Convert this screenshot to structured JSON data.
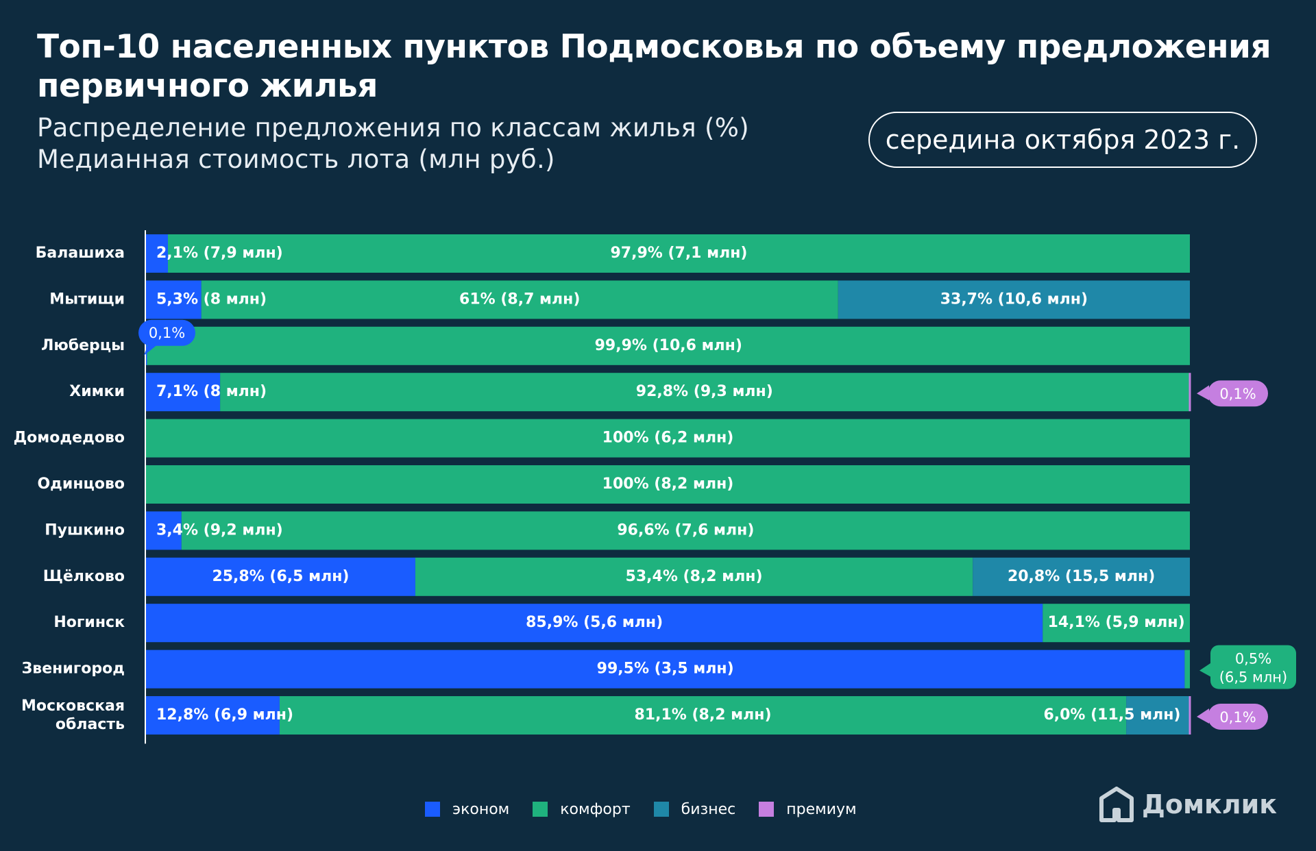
{
  "title": "Топ-10 населенных пунктов Подмосковья по объему предложения первичного жилья",
  "subtitle_line1": "Распределение предложения по классам жилья (%)",
  "subtitle_line2": "Медианная стоимость лота (млн руб.)",
  "date_label": "середина октября 2023 г.",
  "brand": "Домклик",
  "colors": {
    "background": "#0e2b3f",
    "economy": "#1a5cff",
    "comfort": "#1fb27e",
    "business": "#1f88a8",
    "premium": "#c57fe0"
  },
  "legend": [
    {
      "key": "economy",
      "label": "эконом"
    },
    {
      "key": "comfort",
      "label": "комфорт"
    },
    {
      "key": "business",
      "label": "бизнес"
    },
    {
      "key": "premium",
      "label": "премиум"
    }
  ],
  "chart_data": {
    "type": "bar",
    "orientation": "horizontal",
    "stacked": true,
    "xlim": [
      0,
      100
    ],
    "grid": false,
    "legend_position": "bottom",
    "categories": [
      "Балашиха",
      "Мытищи",
      "Люберцы",
      "Химки",
      "Домодедово",
      "Одинцово",
      "Пушкино",
      "Щёлково",
      "Ногинск",
      "Звенигород",
      "Московская область"
    ],
    "series": [
      {
        "name": "эконом",
        "color_key": "economy",
        "values": [
          2.1,
          5.3,
          0.1,
          7.1,
          0,
          0,
          3.4,
          25.8,
          85.9,
          99.5,
          12.8
        ]
      },
      {
        "name": "комфорт",
        "color_key": "comfort",
        "values": [
          97.9,
          61,
          99.9,
          92.8,
          100,
          100,
          96.6,
          53.4,
          14.1,
          0.5,
          81.1
        ]
      },
      {
        "name": "бизнес",
        "color_key": "business",
        "values": [
          0,
          33.7,
          0,
          0,
          0,
          0,
          0,
          20.8,
          0,
          0,
          6.0
        ]
      },
      {
        "name": "премиум",
        "color_key": "premium",
        "values": [
          0,
          0,
          0,
          0.1,
          0,
          0,
          0,
          0,
          0,
          0,
          0.1
        ]
      }
    ],
    "labels": [
      [
        {
          "series": 0,
          "text": "2,1% (7,9 млн)",
          "placement": "start"
        },
        {
          "series": 1,
          "text": "97,9% (7,1 млн)",
          "placement": "center"
        }
      ],
      [
        {
          "series": 0,
          "text": "5,3% (8 млн)",
          "placement": "start"
        },
        {
          "series": 1,
          "text": "61% (8,7 млн)",
          "placement": "center"
        },
        {
          "series": 2,
          "text": "33,7% (10,6 млн)",
          "placement": "center"
        }
      ],
      [
        {
          "series": 0,
          "text": "0,1%",
          "placement": "callout-left"
        },
        {
          "series": 1,
          "text": "99,9% (10,6 млн)",
          "placement": "center"
        }
      ],
      [
        {
          "series": 0,
          "text": "7,1% (8 млн)",
          "placement": "start"
        },
        {
          "series": 1,
          "text": "92,8% (9,3 млн)",
          "placement": "center"
        },
        {
          "series": 3,
          "text": "0,1%",
          "placement": "callout-right"
        }
      ],
      [
        {
          "series": 1,
          "text": "100% (6,2 млн)",
          "placement": "center"
        }
      ],
      [
        {
          "series": 1,
          "text": "100% (8,2 млн)",
          "placement": "center"
        }
      ],
      [
        {
          "series": 0,
          "text": "3,4% (9,2 млн)",
          "placement": "start"
        },
        {
          "series": 1,
          "text": "96,6% (7,6 млн)",
          "placement": "center"
        }
      ],
      [
        {
          "series": 0,
          "text": "25,8% (6,5 млн)",
          "placement": "center"
        },
        {
          "series": 1,
          "text": "53,4% (8,2 млн)",
          "placement": "center"
        },
        {
          "series": 2,
          "text": "20,8% (15,5 млн)",
          "placement": "center"
        }
      ],
      [
        {
          "series": 0,
          "text": "85,9% (5,6 млн)",
          "placement": "center"
        },
        {
          "series": 1,
          "text": "14,1% (5,9 млн)",
          "placement": "center"
        }
      ],
      [
        {
          "series": 0,
          "text": "99,5% (3,5 млн)",
          "placement": "center"
        },
        {
          "series": 1,
          "text": "0,5%\n(6,5 млн)",
          "placement": "callout-right"
        }
      ],
      [
        {
          "series": 0,
          "text": "12,8% (6,9 млн)",
          "placement": "start"
        },
        {
          "series": 1,
          "text": "81,1% (8,2 млн)",
          "placement": "center"
        },
        {
          "series": 2,
          "text": "6,0% (11,5 млн)",
          "placement": "end"
        },
        {
          "series": 3,
          "text": "0,1%",
          "placement": "callout-right"
        }
      ]
    ]
  }
}
